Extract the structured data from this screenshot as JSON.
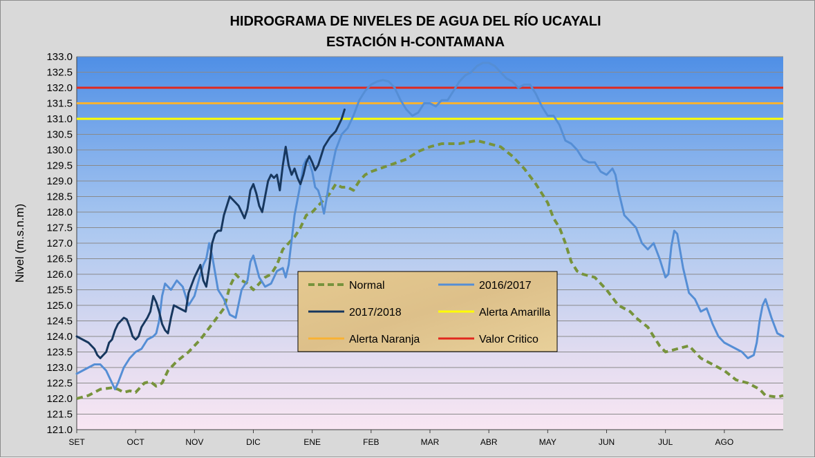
{
  "chart_data": {
    "type": "line",
    "title": "HIDROGRAMA DE NIVELES DE AGUA DEL RÍO UCAYALI",
    "subtitle": "ESTACIÓN  H-CONTAMANA",
    "ylabel": "Nivel (m.s.n.m)",
    "xlabel": "",
    "ylim": [
      121.0,
      133.0
    ],
    "y_ticks": [
      "121.0",
      "121.5",
      "122.0",
      "122.5",
      "123.0",
      "123.5",
      "124.0",
      "124.5",
      "125.0",
      "125.5",
      "126.0",
      "126.5",
      "127.0",
      "127.5",
      "128.0",
      "128.5",
      "129.0",
      "129.5",
      "130.0",
      "130.5",
      "131.0",
      "131.5",
      "132.0",
      "132.5",
      "133.0"
    ],
    "categories": [
      "SET",
      "OCT",
      "NOV",
      "DIC",
      "ENE",
      "FEB",
      "MAR",
      "ABR",
      "MAY",
      "JUN",
      "JUL",
      "AGO"
    ],
    "x_unit": "month index (0 = SET, 12 = end of AGO)",
    "grid": true,
    "legend_position": "center",
    "series": [
      {
        "name": "Normal",
        "color": "#77933c",
        "style": "dashed",
        "points": [
          [
            0,
            122.0
          ],
          [
            0.2,
            122.1
          ],
          [
            0.4,
            122.3
          ],
          [
            0.6,
            122.35
          ],
          [
            0.7,
            122.3
          ],
          [
            0.8,
            122.2
          ],
          [
            0.9,
            122.25
          ],
          [
            1.0,
            122.2
          ],
          [
            1.05,
            122.3
          ],
          [
            1.15,
            122.5
          ],
          [
            1.25,
            122.55
          ],
          [
            1.35,
            122.4
          ],
          [
            1.45,
            122.5
          ],
          [
            1.55,
            122.9
          ],
          [
            1.7,
            123.2
          ],
          [
            1.9,
            123.5
          ],
          [
            2.1,
            123.9
          ],
          [
            2.3,
            124.4
          ],
          [
            2.5,
            124.9
          ],
          [
            2.6,
            125.6
          ],
          [
            2.7,
            126.0
          ],
          [
            2.8,
            125.8
          ],
          [
            2.9,
            125.7
          ],
          [
            3.0,
            125.5
          ],
          [
            3.1,
            125.7
          ],
          [
            3.2,
            125.9
          ],
          [
            3.3,
            126.0
          ],
          [
            3.4,
            126.3
          ],
          [
            3.5,
            126.8
          ],
          [
            3.6,
            127.0
          ],
          [
            3.7,
            127.2
          ],
          [
            3.8,
            127.5
          ],
          [
            3.9,
            127.9
          ],
          [
            4.0,
            128.0
          ],
          [
            4.1,
            128.2
          ],
          [
            4.2,
            128.4
          ],
          [
            4.3,
            128.6
          ],
          [
            4.4,
            128.9
          ],
          [
            4.5,
            128.8
          ],
          [
            4.6,
            128.8
          ],
          [
            4.7,
            128.7
          ],
          [
            4.8,
            129.0
          ],
          [
            4.9,
            129.2
          ],
          [
            5.0,
            129.3
          ],
          [
            5.3,
            129.5
          ],
          [
            5.6,
            129.7
          ],
          [
            5.8,
            129.95
          ],
          [
            6.0,
            130.1
          ],
          [
            6.2,
            130.2
          ],
          [
            6.5,
            130.2
          ],
          [
            6.8,
            130.3
          ],
          [
            7.0,
            130.2
          ],
          [
            7.2,
            130.1
          ],
          [
            7.4,
            129.8
          ],
          [
            7.6,
            129.4
          ],
          [
            7.8,
            128.9
          ],
          [
            8.0,
            128.3
          ],
          [
            8.1,
            127.8
          ],
          [
            8.2,
            127.5
          ],
          [
            8.3,
            127.0
          ],
          [
            8.4,
            126.4
          ],
          [
            8.5,
            126.1
          ],
          [
            8.6,
            126.0
          ],
          [
            8.7,
            125.95
          ],
          [
            8.8,
            125.9
          ],
          [
            9.0,
            125.5
          ],
          [
            9.2,
            125.0
          ],
          [
            9.4,
            124.8
          ],
          [
            9.5,
            124.6
          ],
          [
            9.7,
            124.3
          ],
          [
            9.8,
            124.0
          ],
          [
            9.9,
            123.7
          ],
          [
            10.0,
            123.5
          ],
          [
            10.2,
            123.6
          ],
          [
            10.4,
            123.7
          ],
          [
            10.6,
            123.3
          ],
          [
            10.8,
            123.1
          ],
          [
            11.0,
            122.9
          ],
          [
            11.2,
            122.6
          ],
          [
            11.4,
            122.5
          ],
          [
            11.6,
            122.3
          ],
          [
            11.7,
            122.1
          ],
          [
            11.9,
            122.05
          ],
          [
            12.0,
            122.1
          ]
        ]
      },
      {
        "name": "2016/2017",
        "color": "#558ed5",
        "style": "solid",
        "points": [
          [
            0,
            122.8
          ],
          [
            0.1,
            122.9
          ],
          [
            0.2,
            123.0
          ],
          [
            0.3,
            123.1
          ],
          [
            0.4,
            123.1
          ],
          [
            0.5,
            122.9
          ],
          [
            0.6,
            122.5
          ],
          [
            0.65,
            122.3
          ],
          [
            0.7,
            122.5
          ],
          [
            0.8,
            123.0
          ],
          [
            0.9,
            123.3
          ],
          [
            1.0,
            123.5
          ],
          [
            1.1,
            123.6
          ],
          [
            1.2,
            123.9
          ],
          [
            1.3,
            124.0
          ],
          [
            1.35,
            124.1
          ],
          [
            1.4,
            124.5
          ],
          [
            1.45,
            125.3
          ],
          [
            1.5,
            125.7
          ],
          [
            1.6,
            125.5
          ],
          [
            1.7,
            125.8
          ],
          [
            1.8,
            125.6
          ],
          [
            1.9,
            125.0
          ],
          [
            2.0,
            125.3
          ],
          [
            2.1,
            126.0
          ],
          [
            2.15,
            126.3
          ],
          [
            2.2,
            126.5
          ],
          [
            2.25,
            127.0
          ],
          [
            2.3,
            126.6
          ],
          [
            2.4,
            125.5
          ],
          [
            2.5,
            125.2
          ],
          [
            2.6,
            124.7
          ],
          [
            2.7,
            124.6
          ],
          [
            2.8,
            125.5
          ],
          [
            2.9,
            125.8
          ],
          [
            2.95,
            126.4
          ],
          [
            3.0,
            126.6
          ],
          [
            3.1,
            125.9
          ],
          [
            3.2,
            125.6
          ],
          [
            3.3,
            125.7
          ],
          [
            3.4,
            126.1
          ],
          [
            3.5,
            126.2
          ],
          [
            3.55,
            125.9
          ],
          [
            3.6,
            126.3
          ],
          [
            3.65,
            127.1
          ],
          [
            3.7,
            127.9
          ],
          [
            3.75,
            128.4
          ],
          [
            3.8,
            128.9
          ],
          [
            3.85,
            129.5
          ],
          [
            3.9,
            129.7
          ],
          [
            3.95,
            129.6
          ],
          [
            4.0,
            129.3
          ],
          [
            4.05,
            128.8
          ],
          [
            4.1,
            128.7
          ],
          [
            4.15,
            128.4
          ],
          [
            4.2,
            127.95
          ],
          [
            4.25,
            128.5
          ],
          [
            4.3,
            129.1
          ],
          [
            4.4,
            130.0
          ],
          [
            4.5,
            130.5
          ],
          [
            4.6,
            130.7
          ],
          [
            4.7,
            131.1
          ],
          [
            4.8,
            131.6
          ],
          [
            4.9,
            131.9
          ],
          [
            5.0,
            132.1
          ],
          [
            5.1,
            132.2
          ],
          [
            5.2,
            132.25
          ],
          [
            5.3,
            132.2
          ],
          [
            5.4,
            132.0
          ],
          [
            5.5,
            131.6
          ],
          [
            5.6,
            131.3
          ],
          [
            5.7,
            131.1
          ],
          [
            5.8,
            131.2
          ],
          [
            5.9,
            131.5
          ],
          [
            6.0,
            131.5
          ],
          [
            6.1,
            131.4
          ],
          [
            6.2,
            131.6
          ],
          [
            6.3,
            131.6
          ],
          [
            6.4,
            131.9
          ],
          [
            6.5,
            132.2
          ],
          [
            6.6,
            132.4
          ],
          [
            6.7,
            132.5
          ],
          [
            6.8,
            132.7
          ],
          [
            6.9,
            132.8
          ],
          [
            7.0,
            132.8
          ],
          [
            7.1,
            132.7
          ],
          [
            7.2,
            132.5
          ],
          [
            7.3,
            132.3
          ],
          [
            7.4,
            132.2
          ],
          [
            7.5,
            132.0
          ],
          [
            7.6,
            132.1
          ],
          [
            7.7,
            132.1
          ],
          [
            7.8,
            131.8
          ],
          [
            7.9,
            131.4
          ],
          [
            8.0,
            131.1
          ],
          [
            8.1,
            131.1
          ],
          [
            8.2,
            130.8
          ],
          [
            8.3,
            130.3
          ],
          [
            8.4,
            130.2
          ],
          [
            8.5,
            130.0
          ],
          [
            8.6,
            129.7
          ],
          [
            8.7,
            129.6
          ],
          [
            8.8,
            129.6
          ],
          [
            8.9,
            129.3
          ],
          [
            9.0,
            129.2
          ],
          [
            9.1,
            129.4
          ],
          [
            9.15,
            129.2
          ],
          [
            9.2,
            128.7
          ],
          [
            9.3,
            127.9
          ],
          [
            9.4,
            127.7
          ],
          [
            9.5,
            127.5
          ],
          [
            9.6,
            127.0
          ],
          [
            9.7,
            126.8
          ],
          [
            9.8,
            127.0
          ],
          [
            9.9,
            126.5
          ],
          [
            10.0,
            125.9
          ],
          [
            10.05,
            126.0
          ],
          [
            10.1,
            126.9
          ],
          [
            10.15,
            127.4
          ],
          [
            10.2,
            127.3
          ],
          [
            10.3,
            126.2
          ],
          [
            10.4,
            125.4
          ],
          [
            10.5,
            125.2
          ],
          [
            10.6,
            124.8
          ],
          [
            10.7,
            124.9
          ],
          [
            10.8,
            124.4
          ],
          [
            10.9,
            124.0
          ],
          [
            11.0,
            123.8
          ],
          [
            11.2,
            123.6
          ],
          [
            11.3,
            123.5
          ],
          [
            11.4,
            123.3
          ],
          [
            11.5,
            123.4
          ],
          [
            11.55,
            123.8
          ],
          [
            11.6,
            124.5
          ],
          [
            11.65,
            125.0
          ],
          [
            11.7,
            125.2
          ],
          [
            11.75,
            124.9
          ],
          [
            11.8,
            124.6
          ],
          [
            11.9,
            124.1
          ],
          [
            12.0,
            124.0
          ]
        ]
      },
      {
        "name": "2017/2018",
        "color": "#17375e",
        "style": "solid",
        "points": [
          [
            0,
            124.0
          ],
          [
            0.1,
            123.9
          ],
          [
            0.2,
            123.8
          ],
          [
            0.3,
            123.6
          ],
          [
            0.35,
            123.4
          ],
          [
            0.4,
            123.3
          ],
          [
            0.45,
            123.4
          ],
          [
            0.5,
            123.5
          ],
          [
            0.55,
            123.8
          ],
          [
            0.6,
            123.9
          ],
          [
            0.65,
            124.2
          ],
          [
            0.7,
            124.4
          ],
          [
            0.8,
            124.6
          ],
          [
            0.85,
            124.55
          ],
          [
            0.9,
            124.3
          ],
          [
            0.95,
            124.0
          ],
          [
            1.0,
            123.9
          ],
          [
            1.05,
            124.0
          ],
          [
            1.1,
            124.3
          ],
          [
            1.2,
            124.6
          ],
          [
            1.25,
            124.8
          ],
          [
            1.3,
            125.3
          ],
          [
            1.35,
            125.1
          ],
          [
            1.4,
            124.8
          ],
          [
            1.45,
            124.4
          ],
          [
            1.5,
            124.2
          ],
          [
            1.55,
            124.1
          ],
          [
            1.6,
            124.6
          ],
          [
            1.65,
            125.0
          ],
          [
            1.75,
            124.9
          ],
          [
            1.85,
            124.8
          ],
          [
            1.9,
            125.4
          ],
          [
            2.0,
            125.9
          ],
          [
            2.1,
            126.3
          ],
          [
            2.15,
            125.8
          ],
          [
            2.2,
            125.6
          ],
          [
            2.25,
            126.2
          ],
          [
            2.3,
            127.0
          ],
          [
            2.35,
            127.3
          ],
          [
            2.4,
            127.4
          ],
          [
            2.45,
            127.4
          ],
          [
            2.5,
            127.9
          ],
          [
            2.6,
            128.5
          ],
          [
            2.7,
            128.3
          ],
          [
            2.75,
            128.2
          ],
          [
            2.8,
            128.0
          ],
          [
            2.85,
            127.8
          ],
          [
            2.9,
            128.1
          ],
          [
            2.95,
            128.7
          ],
          [
            3.0,
            128.9
          ],
          [
            3.05,
            128.6
          ],
          [
            3.1,
            128.2
          ],
          [
            3.15,
            128.0
          ],
          [
            3.2,
            128.5
          ],
          [
            3.25,
            129.0
          ],
          [
            3.3,
            129.2
          ],
          [
            3.35,
            129.1
          ],
          [
            3.4,
            129.2
          ],
          [
            3.45,
            128.7
          ],
          [
            3.5,
            129.5
          ],
          [
            3.55,
            130.1
          ],
          [
            3.6,
            129.5
          ],
          [
            3.65,
            129.2
          ],
          [
            3.7,
            129.4
          ],
          [
            3.75,
            129.1
          ],
          [
            3.8,
            128.9
          ],
          [
            3.85,
            129.2
          ],
          [
            3.9,
            129.6
          ],
          [
            3.95,
            129.8
          ],
          [
            4.0,
            129.6
          ],
          [
            4.05,
            129.35
          ],
          [
            4.1,
            129.5
          ],
          [
            4.2,
            130.1
          ],
          [
            4.3,
            130.4
          ],
          [
            4.4,
            130.6
          ],
          [
            4.5,
            131.0
          ],
          [
            4.55,
            131.3
          ]
        ]
      },
      {
        "name": "Alerta Amarilla",
        "color": "#ffff00",
        "style": "solid",
        "value": 131.0
      },
      {
        "name": "Alerta Naranja",
        "color": "#f9b233",
        "style": "solid",
        "value": 131.5
      },
      {
        "name": "Valor Critico",
        "color": "#e1281e",
        "style": "solid",
        "value": 132.0
      }
    ]
  }
}
